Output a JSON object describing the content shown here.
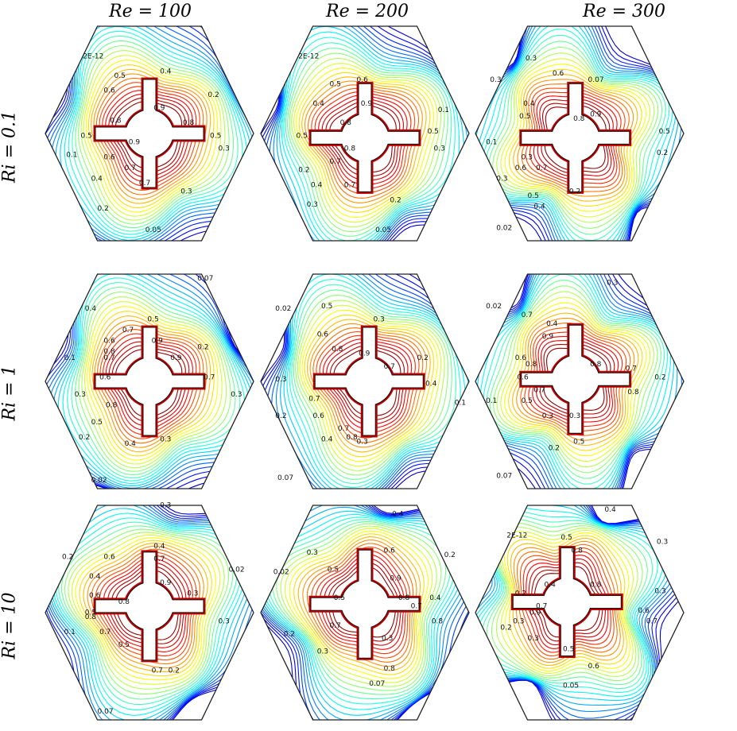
{
  "columns": [
    "Re = 100",
    "Re = 200",
    "Re = 300"
  ],
  "rows": [
    "Ri = 0.1",
    "Ri = 1",
    "Ri = 10"
  ],
  "panels": [
    {
      "id": "ri01-re100",
      "labels": [
        "2E-12",
        "0.5",
        "0.4",
        "0.6",
        "0.2",
        "0.9",
        "0.8",
        "0.8",
        "0.5",
        "0.5",
        "0.9",
        "0.3",
        "0.6",
        "0.1",
        "0.7",
        "0.4",
        "0.7",
        "0.3",
        "0.2",
        "0.05"
      ]
    },
    {
      "id": "ri01-re200",
      "labels": [
        "2E-12",
        "0.5",
        "0.6",
        "0.4",
        "0.9",
        "0.1",
        "0.8",
        "0.5",
        "0.5",
        "0.3",
        "0.8",
        "0.2",
        "0.7",
        "0.4",
        "0.7",
        "0.2",
        "0.3",
        "0.05"
      ]
    },
    {
      "id": "ri01-re300",
      "labels": [
        "0.3",
        "0.3",
        "0.6",
        "0.07",
        "0.4",
        "0.5",
        "0.8",
        "0.5",
        "0.9",
        "0.1",
        "0.3",
        "0.6",
        "0.2",
        "0.7",
        "0.3",
        "0.2",
        "0.5",
        "0.4",
        "0.02"
      ]
    },
    {
      "id": "ri1-re100",
      "labels": [
        "0.07",
        "0.4",
        "0.5",
        "0.7",
        "0.9",
        "0.6",
        "0.8",
        "0.2",
        "0.1",
        "0.7",
        "0.9",
        "0.6",
        "0.7",
        "0.3",
        "0.3",
        "0.8",
        "0.5",
        "0.2",
        "0.4",
        "0.3",
        "0.02"
      ]
    },
    {
      "id": "ri1-re200",
      "labels": [
        "0.02",
        "0.5",
        "0.3",
        "0.6",
        "0.8",
        "0.9",
        "0.2",
        "0.7",
        "0.3",
        "0.4",
        "0.1",
        "0.7",
        "0.2",
        "0.6",
        "0.7",
        "0.4",
        "0.8",
        "0.3",
        "0.07"
      ]
    },
    {
      "id": "ri1-re300",
      "labels": [
        "0.3",
        "0.02",
        "0.7",
        "0.4",
        "0.9",
        "0.6",
        "0.8",
        "0.8",
        "0.7",
        "0.2",
        "0.6",
        "0.7",
        "0.8",
        "0.1",
        "0.5",
        "0.3",
        "0.3",
        "0.5",
        "0.2",
        "0.07"
      ]
    },
    {
      "id": "ri10-re100",
      "labels": [
        "0.3",
        "0.4",
        "0.6",
        "0.7",
        "0.2",
        "0.02",
        "0.4",
        "0.9",
        "0.6",
        "0.3",
        "0.8",
        "0.5",
        "0.8",
        "0.3",
        "0.1",
        "0.7",
        "0.5",
        "0.7",
        "0.2",
        "0.07"
      ]
    },
    {
      "id": "ri10-re200",
      "labels": [
        "0.4",
        "0.3",
        "0.6",
        "0.2",
        "0.02",
        "0.5",
        "0.9",
        "0.5",
        "0.8",
        "0.4",
        "0.7",
        "0.2",
        "0.7",
        "0.8",
        "0.3",
        "0.3",
        "0.8",
        "0.07"
      ]
    },
    {
      "id": "ri10-re300",
      "labels": [
        "0.4",
        "2E-12",
        "0.5",
        "0.3",
        "0.8",
        "0.4",
        "0.8",
        "0.2",
        "0.3",
        "0.7",
        "0.9",
        "0.6",
        "0.3",
        "0.7",
        "0.2",
        "0.3",
        "0.5",
        "0.6",
        "0.05"
      ]
    }
  ]
}
